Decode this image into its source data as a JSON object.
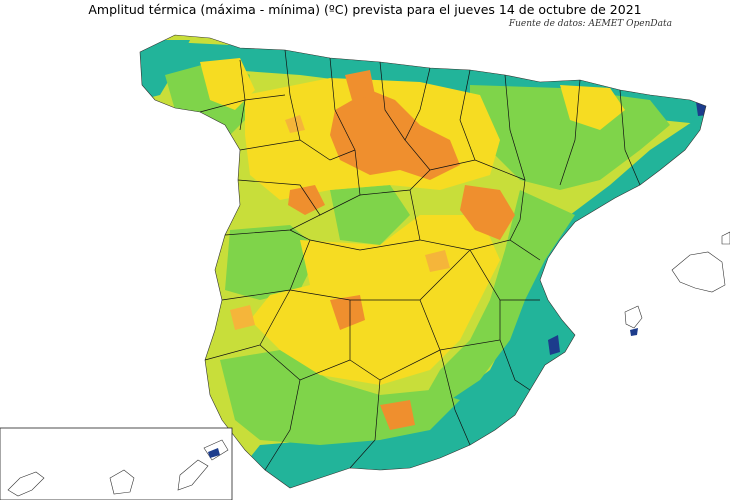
{
  "title": "Amplitud térmica (máxima - mínima) (ºC) prevista para el jueves 14 de octubre de 2021",
  "source": "Fuente de datos: AEMET OpenData",
  "colors": {
    "dark_blue": "#1c3c8c",
    "teal": "#22b49a",
    "light_green": "#7fd44a",
    "yellow_green": "#c8de3a",
    "yellow": "#f6dc22",
    "light_orange": "#f5b53a",
    "orange": "#ef8f2e"
  }
}
